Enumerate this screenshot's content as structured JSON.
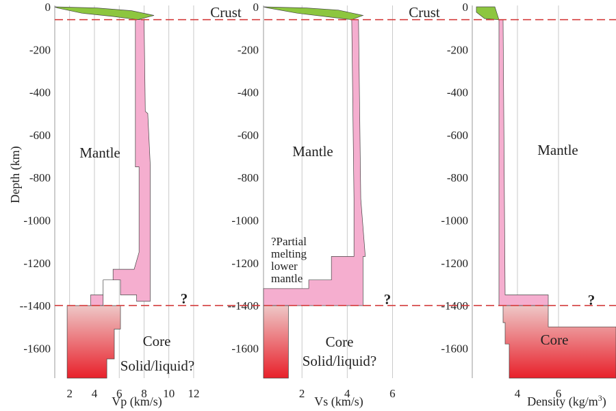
{
  "chart_data": [
    {
      "type": "area",
      "xlabel": "Vp (km/s)",
      "ylabel": "Depth (km)",
      "xticks": [
        2,
        4,
        6,
        8,
        10,
        12
      ],
      "yticks": [
        0,
        -200,
        -400,
        -600,
        -800,
        -1000,
        -1200,
        "--1400",
        -1600
      ],
      "xlim": [
        0.8,
        12.5
      ],
      "ylim": [
        -1740,
        0
      ],
      "grid": true,
      "crust_outline": [
        [
          0.8,
          0
        ],
        [
          4.2,
          -5
        ],
        [
          7.0,
          -18
        ],
        [
          8.8,
          -40
        ],
        [
          7.5,
          -60
        ],
        [
          5.5,
          -45
        ],
        [
          3.0,
          -30
        ],
        [
          1.0,
          -5
        ]
      ],
      "mantle_outline": [
        [
          7.4,
          -60
        ],
        [
          8.0,
          -60
        ],
        [
          8.1,
          -490
        ],
        [
          8.3,
          -500
        ],
        [
          8.5,
          -740
        ],
        [
          8.5,
          -1380
        ],
        [
          7.4,
          -1380
        ],
        [
          7.4,
          -1350
        ],
        [
          6.1,
          -1350
        ],
        [
          6.1,
          -1280
        ],
        [
          4.7,
          -1280
        ],
        [
          4.7,
          -1350
        ],
        [
          4.7,
          -1400
        ],
        [
          3.7,
          -1400
        ],
        [
          3.7,
          -1350
        ],
        [
          4.7,
          -1350
        ],
        [
          4.7,
          -1280
        ],
        [
          5.5,
          -1280
        ],
        [
          5.5,
          -1230
        ],
        [
          7.2,
          -1230
        ],
        [
          7.6,
          -1150
        ],
        [
          7.6,
          -750
        ],
        [
          7.3,
          -750
        ],
        [
          7.3,
          -60
        ]
      ],
      "core_outline": [
        [
          1.8,
          -1400
        ],
        [
          6.1,
          -1400
        ],
        [
          6.1,
          -1510
        ],
        [
          5.6,
          -1510
        ],
        [
          5.6,
          -1650
        ],
        [
          5.0,
          -1650
        ],
        [
          5.0,
          -1740
        ],
        [
          1.8,
          -1740
        ]
      ],
      "mantle_label": "Mantle",
      "core_label": "Core",
      "core_note": "Solid/liquid?",
      "boundary_question": "?"
    },
    {
      "type": "area",
      "xlabel": "Vs (km/s)",
      "yticks": [
        0,
        -200,
        -400,
        -600,
        -800,
        -1000,
        -1200,
        "--1400",
        -1600
      ],
      "xticks": [
        2,
        4,
        6
      ],
      "xlim": [
        0.3,
        6.2
      ],
      "ylim": [
        -1740,
        0
      ],
      "grid": true,
      "crust_outline": [
        [
          0.3,
          0
        ],
        [
          2.2,
          -5
        ],
        [
          3.6,
          -15
        ],
        [
          4.7,
          -40
        ],
        [
          4.2,
          -60
        ],
        [
          3.0,
          -45
        ],
        [
          1.8,
          -30
        ],
        [
          0.5,
          -5
        ]
      ],
      "mantle_outline": [
        [
          4.2,
          -60
        ],
        [
          4.5,
          -60
        ],
        [
          4.6,
          -900
        ],
        [
          4.8,
          -1170
        ],
        [
          4.7,
          -1170
        ],
        [
          4.7,
          -1400
        ],
        [
          0.3,
          -1400
        ],
        [
          0.3,
          -1320
        ],
        [
          2.3,
          -1320
        ],
        [
          2.3,
          -1280
        ],
        [
          3.3,
          -1280
        ],
        [
          3.3,
          -1170
        ],
        [
          4.3,
          -1170
        ],
        [
          4.3,
          -900
        ]
      ],
      "core_outline": [
        [
          0.3,
          -1400
        ],
        [
          1.4,
          -1400
        ],
        [
          1.4,
          -1740
        ],
        [
          0.3,
          -1740
        ]
      ],
      "mantle_label": "Mantle",
      "partial_melting_note": [
        "?Partial",
        "melting",
        "lower",
        "mantle"
      ],
      "core_label": "Core",
      "core_note": "Solid/liquid?",
      "boundary_question": "?"
    },
    {
      "type": "area",
      "xlabel": "Density (kg/m³)",
      "yticks": [
        0,
        -200,
        -400,
        -600,
        -800,
        -1000,
        -1200,
        "-1400",
        -1600
      ],
      "xticks": [
        4,
        6
      ],
      "xlim": [
        1.8,
        8.8
      ],
      "ylim": [
        -1740,
        0
      ],
      "grid": true,
      "crust_outline": [
        [
          2.0,
          0
        ],
        [
          2.9,
          0
        ],
        [
          3.1,
          -60
        ],
        [
          2.4,
          -55
        ],
        [
          2.0,
          -25
        ]
      ],
      "mantle_outline": [
        [
          3.1,
          -60
        ],
        [
          3.3,
          -60
        ],
        [
          3.4,
          -1350
        ],
        [
          5.5,
          -1350
        ],
        [
          5.5,
          -1400
        ],
        [
          3.1,
          -1400
        ]
      ],
      "core_outline": [
        [
          3.3,
          -1400
        ],
        [
          5.5,
          -1400
        ],
        [
          5.5,
          -1500
        ],
        [
          8.8,
          -1500
        ],
        [
          8.8,
          -1740
        ],
        [
          3.6,
          -1740
        ],
        [
          3.6,
          -1700
        ],
        [
          3.6,
          -1580
        ],
        [
          3.4,
          -1580
        ],
        [
          3.4,
          -1480
        ],
        [
          3.3,
          -1480
        ]
      ],
      "mantle_label": "Mantle",
      "core_label": "Core",
      "boundary_question": "?"
    }
  ],
  "crust_label": "Crust",
  "colors": {
    "crust": "#8dc63f",
    "mantle": "#f5aecf",
    "core_top": "#eec7c7",
    "core_bottom": "#e8202a",
    "boundary_line": "#d43c3c",
    "grid": "#bbbbbb"
  }
}
